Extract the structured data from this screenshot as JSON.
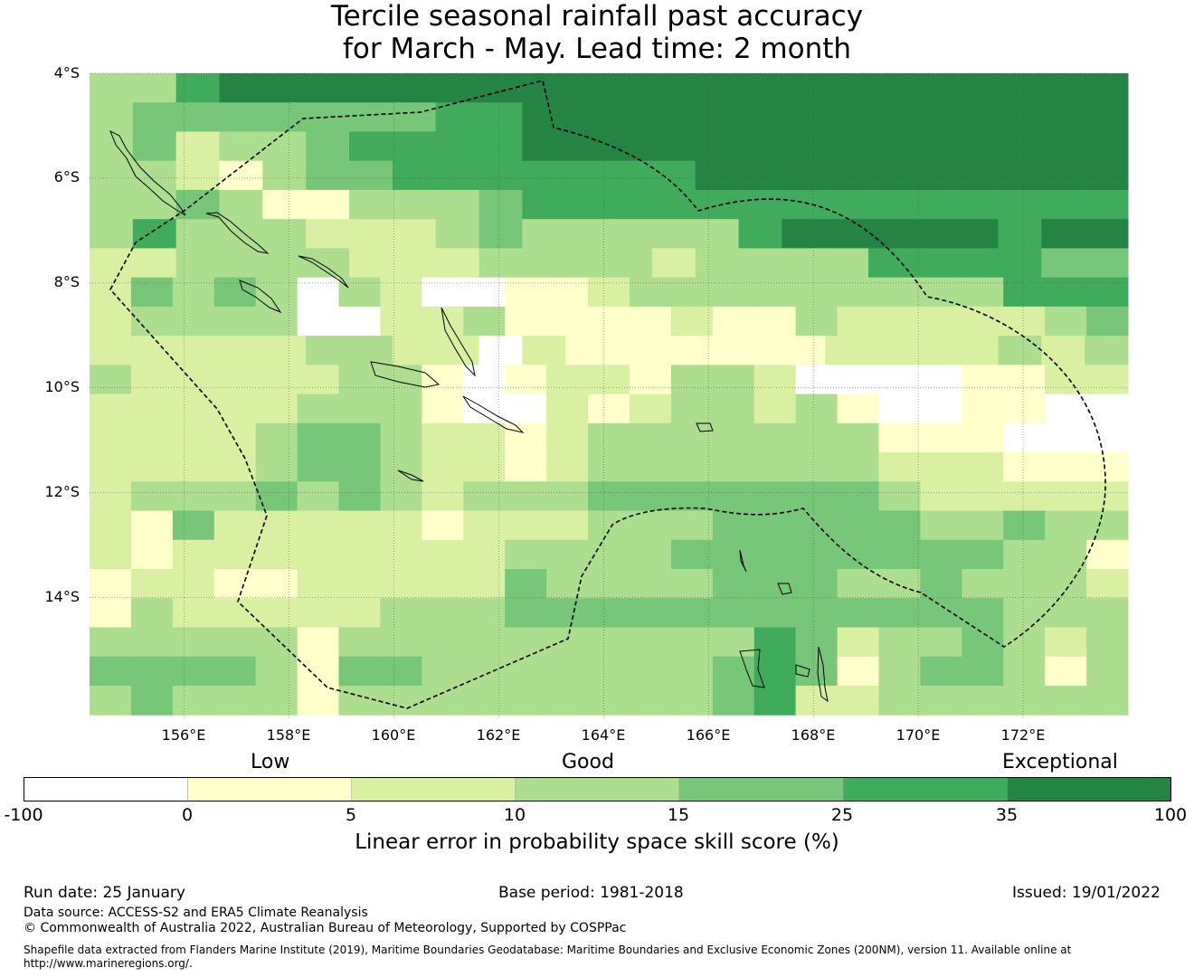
{
  "title": {
    "line1": "Tercile seasonal rainfall past accuracy",
    "line2": "for March - May. Lead time: 2 month"
  },
  "map": {
    "lat_labels": [
      "4°S",
      "6°S",
      "8°S",
      "10°S",
      "12°S",
      "14°S"
    ],
    "lon_labels": [
      "156°E",
      "158°E",
      "160°E",
      "162°E",
      "164°E",
      "166°E",
      "168°E",
      "170°E",
      "172°E"
    ],
    "extent": {
      "lon_min": 154.2,
      "lon_max": 174.0,
      "lat_max": -4.0,
      "lat_min": -16.3
    },
    "cell_size_deg": 0.83,
    "grid_rows": [
      [
        3,
        3,
        5,
        6,
        6,
        6,
        6,
        6,
        6,
        6,
        6,
        6,
        6,
        6,
        6,
        6,
        6,
        6,
        6,
        6,
        6,
        6,
        6,
        6
      ],
      [
        3,
        4,
        4,
        4,
        4,
        4,
        4,
        4,
        5,
        5,
        6,
        6,
        6,
        6,
        6,
        6,
        6,
        6,
        6,
        6,
        6,
        6,
        6,
        6
      ],
      [
        3,
        4,
        2,
        3,
        3,
        4,
        5,
        5,
        5,
        5,
        6,
        6,
        6,
        6,
        6,
        6,
        6,
        6,
        6,
        6,
        6,
        6,
        6,
        6
      ],
      [
        3,
        3,
        2,
        1,
        3,
        4,
        4,
        5,
        5,
        5,
        5,
        5,
        5,
        5,
        6,
        6,
        6,
        6,
        6,
        6,
        6,
        6,
        6,
        6
      ],
      [
        3,
        3,
        4,
        3,
        1,
        1,
        3,
        3,
        3,
        4,
        5,
        5,
        5,
        5,
        5,
        5,
        5,
        5,
        5,
        5,
        5,
        5,
        5,
        5
      ],
      [
        3,
        5,
        3,
        3,
        3,
        2,
        2,
        2,
        3,
        4,
        3,
        3,
        3,
        3,
        3,
        5,
        6,
        6,
        6,
        6,
        6,
        5,
        6,
        6
      ],
      [
        2,
        2,
        3,
        3,
        3,
        3,
        2,
        2,
        2,
        3,
        3,
        3,
        3,
        2,
        3,
        3,
        3,
        3,
        5,
        5,
        5,
        5,
        4,
        4
      ],
      [
        2,
        4,
        3,
        4,
        3,
        0,
        3,
        2,
        0,
        0,
        1,
        1,
        2,
        3,
        3,
        3,
        3,
        3,
        3,
        3,
        3,
        3,
        5,
        5,
        5
      ],
      [
        2,
        3,
        3,
        3,
        3,
        0,
        0,
        2,
        2,
        3,
        1,
        1,
        1,
        1,
        2,
        1,
        1,
        3,
        2,
        2,
        2,
        2,
        2,
        3,
        4
      ],
      [
        2,
        2,
        2,
        2,
        2,
        3,
        3,
        2,
        2,
        0,
        2,
        1,
        1,
        1,
        1,
        1,
        1,
        2,
        2,
        2,
        2,
        3,
        2,
        3
      ],
      [
        3,
        2,
        2,
        2,
        2,
        2,
        3,
        3,
        1,
        0,
        1,
        2,
        2,
        1,
        3,
        3,
        2,
        0,
        0,
        0,
        0,
        1,
        1,
        2,
        2
      ],
      [
        2,
        2,
        2,
        2,
        2,
        3,
        3,
        3,
        1,
        0,
        0,
        2,
        1,
        2,
        3,
        3,
        2,
        3,
        1,
        0,
        0,
        1,
        1,
        0,
        0
      ],
      [
        2,
        2,
        2,
        2,
        3,
        4,
        4,
        3,
        2,
        2,
        1,
        2,
        3,
        3,
        3,
        3,
        3,
        3,
        3,
        1,
        1,
        1,
        0,
        0,
        0
      ],
      [
        2,
        2,
        2,
        2,
        3,
        4,
        4,
        3,
        2,
        2,
        1,
        2,
        3,
        3,
        3,
        3,
        3,
        3,
        3,
        2,
        2,
        2,
        1,
        1,
        1
      ],
      [
        2,
        3,
        3,
        3,
        4,
        3,
        4,
        3,
        2,
        3,
        3,
        3,
        4,
        4,
        4,
        4,
        4,
        4,
        4,
        3,
        2,
        2,
        2,
        2,
        2
      ],
      [
        2,
        1,
        4,
        2,
        2,
        2,
        2,
        2,
        1,
        2,
        2,
        2,
        3,
        3,
        3,
        4,
        4,
        4,
        4,
        4,
        3,
        3,
        4,
        3,
        3
      ],
      [
        2,
        1,
        2,
        2,
        2,
        2,
        2,
        2,
        2,
        2,
        3,
        3,
        3,
        3,
        4,
        4,
        4,
        4,
        4,
        4,
        4,
        4,
        3,
        3,
        1
      ],
      [
        1,
        2,
        2,
        1,
        1,
        2,
        2,
        2,
        2,
        2,
        4,
        3,
        3,
        3,
        3,
        4,
        4,
        4,
        3,
        3,
        4,
        3,
        3,
        3,
        2
      ],
      [
        1,
        3,
        2,
        2,
        2,
        2,
        2,
        3,
        3,
        3,
        4,
        4,
        4,
        4,
        4,
        4,
        4,
        4,
        4,
        4,
        4,
        4,
        3,
        3,
        3
      ],
      [
        3,
        3,
        3,
        3,
        3,
        1,
        3,
        3,
        3,
        3,
        3,
        3,
        3,
        3,
        3,
        3,
        5,
        4,
        2,
        3,
        3,
        4,
        3,
        2,
        3
      ],
      [
        4,
        4,
        4,
        4,
        3,
        1,
        4,
        4,
        3,
        3,
        3,
        3,
        3,
        3,
        3,
        4,
        5,
        4,
        1,
        3,
        4,
        4,
        3,
        1,
        3
      ],
      [
        3,
        4,
        3,
        3,
        3,
        1,
        3,
        3,
        3,
        3,
        3,
        3,
        3,
        3,
        3,
        4,
        5,
        2,
        2,
        3,
        3,
        3,
        3,
        3,
        3
      ]
    ]
  },
  "legend": {
    "categories": {
      "low": "Low",
      "good": "Good",
      "exceptional": "Exceptional"
    },
    "colors": [
      "#ffffff",
      "#ffffcc",
      "#d9f0a3",
      "#addd8e",
      "#78c679",
      "#41ab5d",
      "#238443"
    ],
    "ticks": [
      "-100",
      "0",
      "5",
      "10",
      "15",
      "25",
      "35",
      "100"
    ],
    "title": "Linear error in probability space skill score (%)"
  },
  "footer": {
    "run_date": "Run date: 25 January",
    "base_period": "Base period: 1981-2018",
    "issued": "Issued: 19/01/2022",
    "data_source": "Data source: ACCESS-S2 and ERA5 Climate Reanalysis",
    "copyright": "© Commonwealth of Australia 2022, Australian Bureau of Meteorology, Supported by COSPPac",
    "shapefile_line1": "Shapefile data extracted from Flanders Marine Institute (2019), Maritime Boundaries Geodatabase: Maritime Boundaries and Exclusive Economic Zones (200NM), version 11. Available online at",
    "shapefile_line2": "http://www.marineregions.org/."
  }
}
